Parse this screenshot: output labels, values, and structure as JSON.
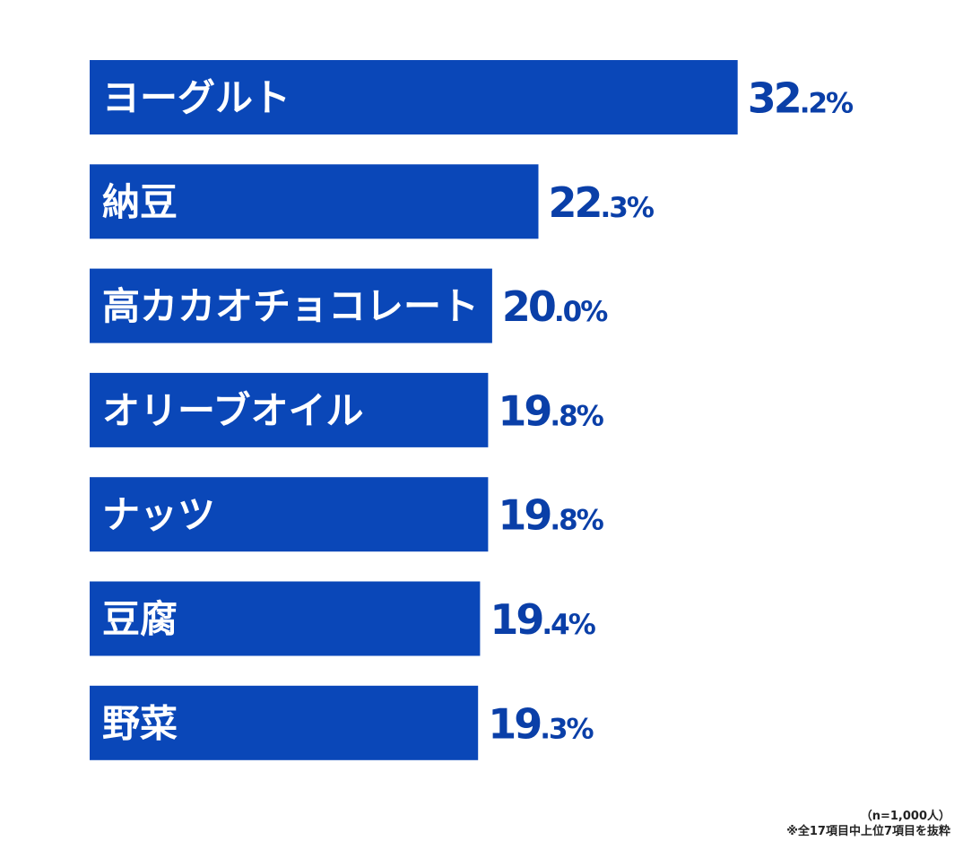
{
  "chart_data": {
    "type": "bar",
    "orientation": "horizontal",
    "categories": [
      "ヨーグルト",
      "納豆",
      "高カカオチョコレート",
      "オリーブオイル",
      "ナッツ",
      "豆腐",
      "野菜"
    ],
    "values": [
      32.2,
      22.3,
      20.0,
      19.8,
      19.8,
      19.4,
      19.3
    ],
    "value_labels": [
      "32.2%",
      "22.3%",
      "20.0%",
      "19.8%",
      "19.8%",
      "19.4%",
      "19.3%"
    ],
    "unit": "%",
    "xlim": [
      0,
      45
    ],
    "grid": false,
    "colors": {
      "bar": "#0a47b8",
      "bar_label": "#ffffff",
      "value_label": "#0a3fa8"
    }
  },
  "notes": {
    "sample": "（n=1,000人）",
    "extract": "※全17項目中上位7項目を抜粋"
  }
}
